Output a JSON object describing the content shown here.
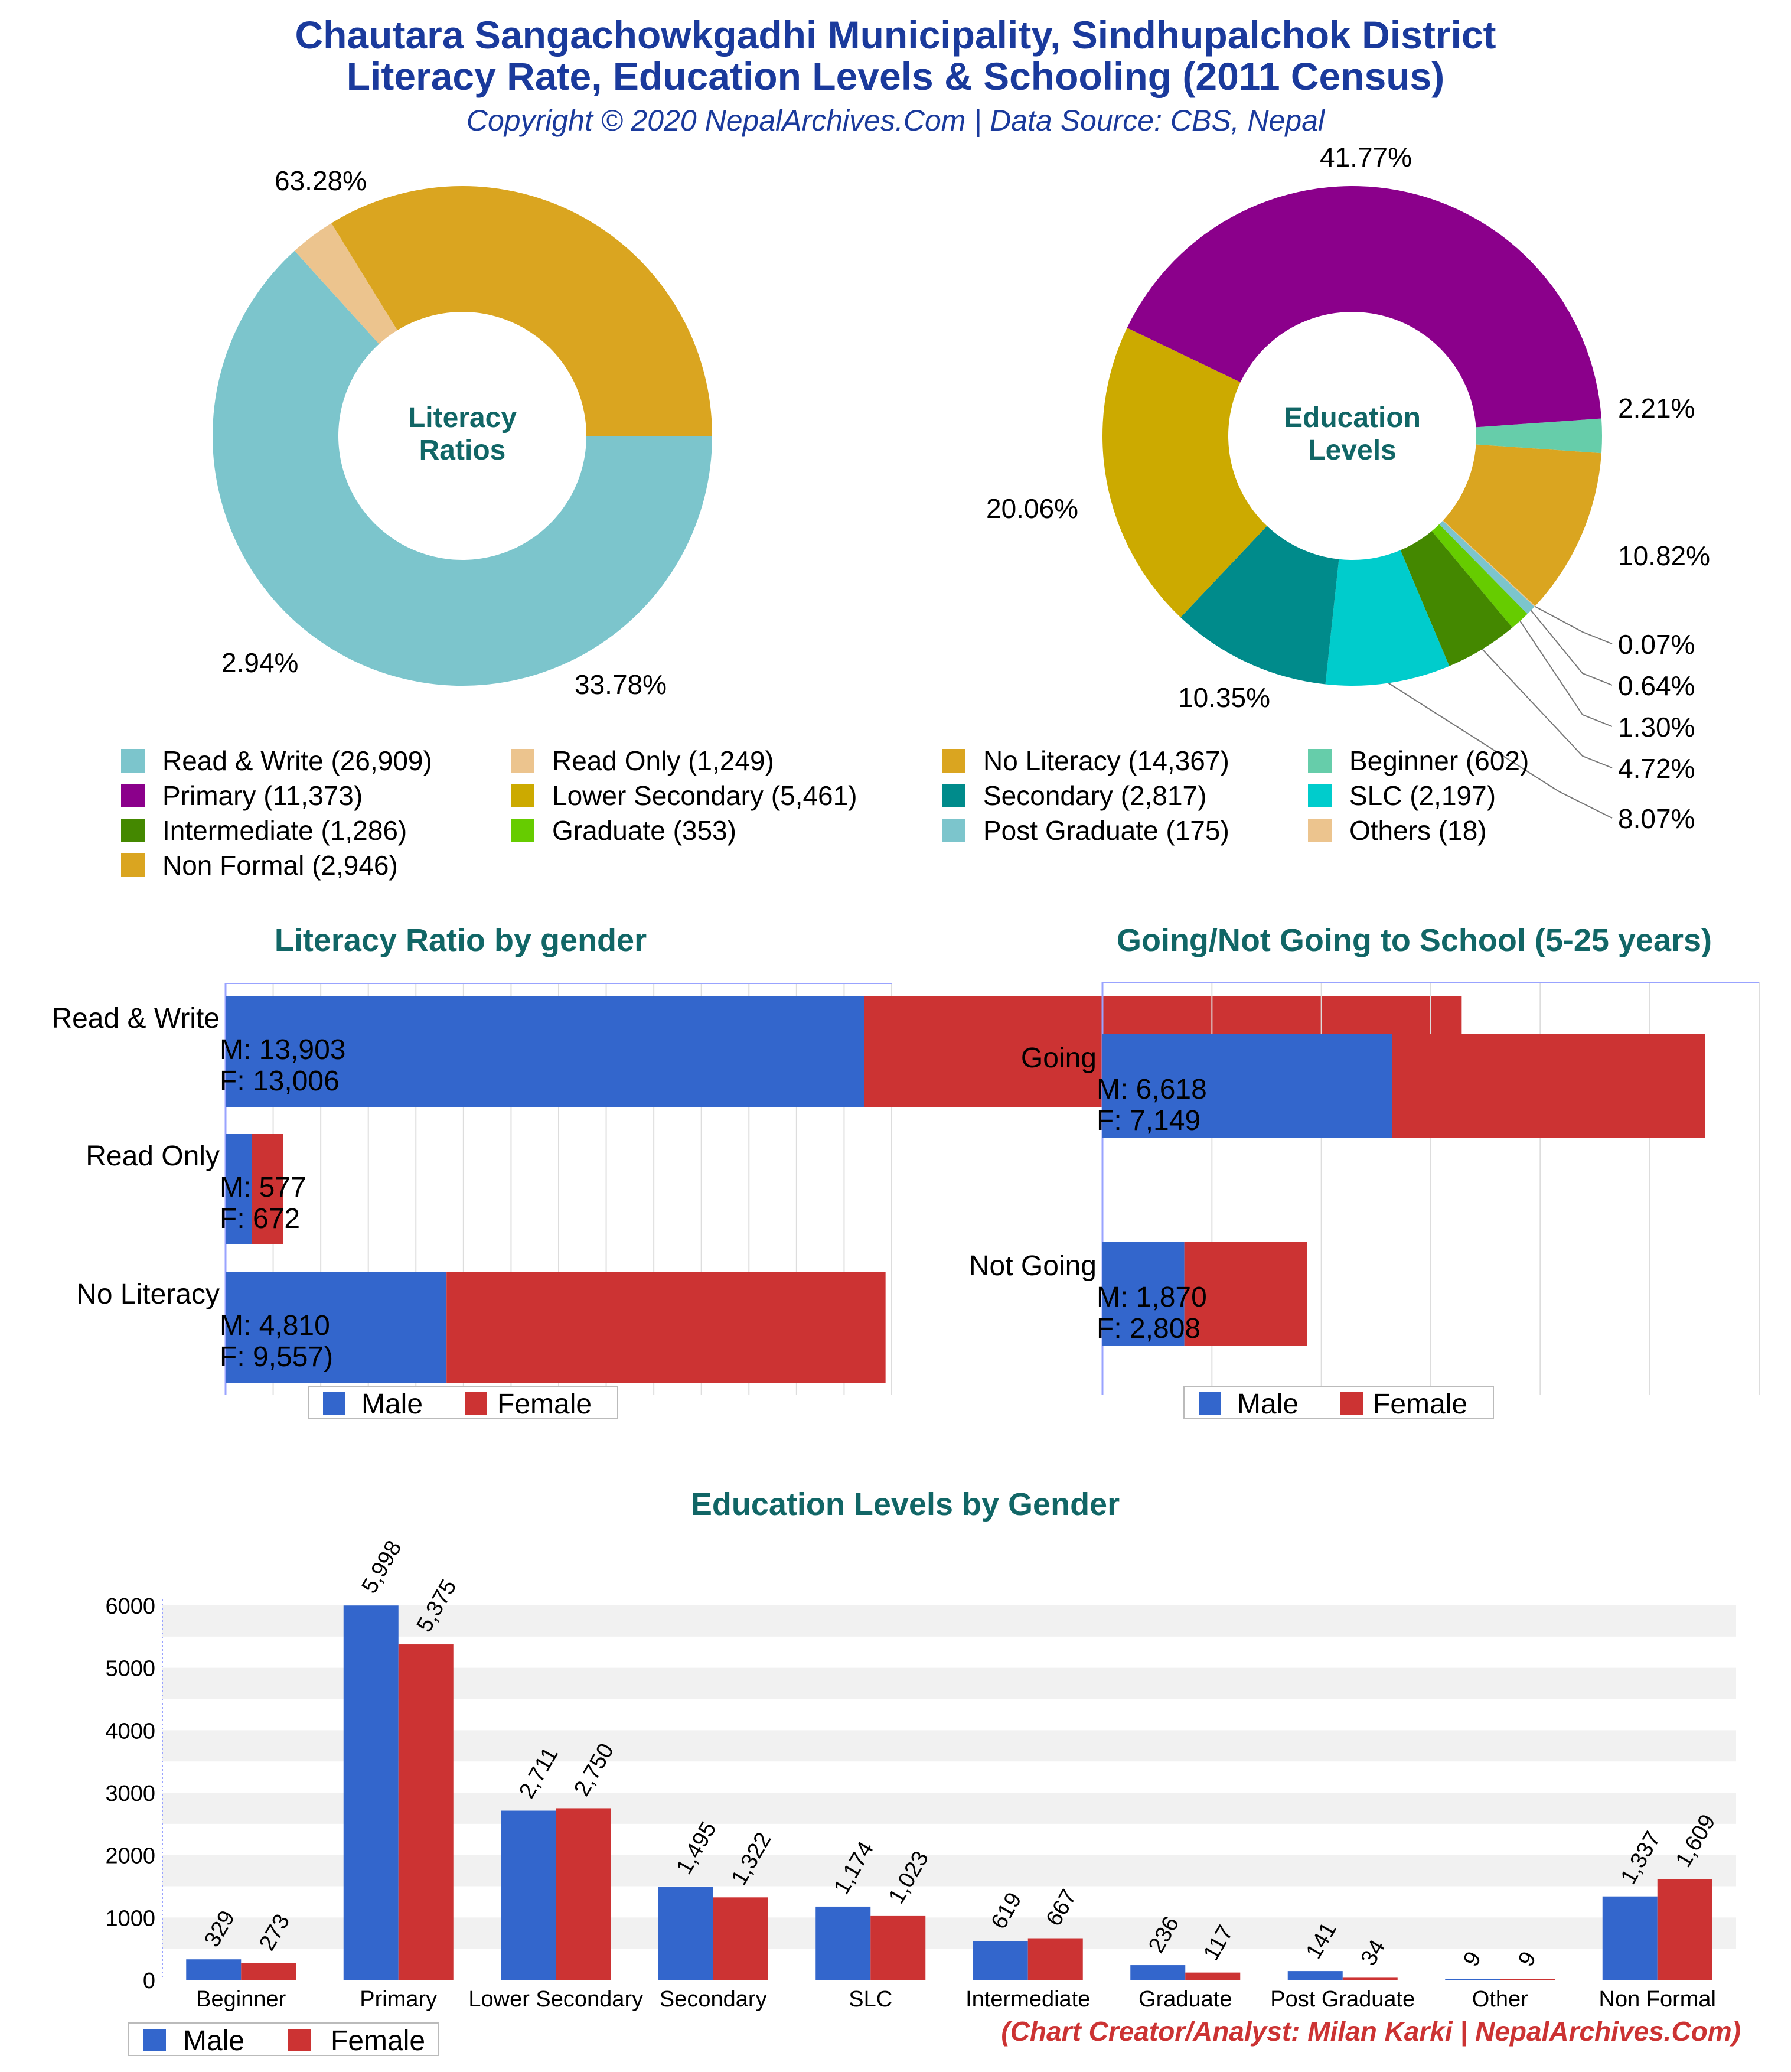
{
  "header": {
    "title_line1": "Chautara Sangachowkgadhi Municipality, Sindhupalchok District",
    "title_line2": "Literacy Rate, Education Levels & Schooling (2011 Census)",
    "copyright": "Copyright © 2020 NepalArchives.Com | Data Source: CBS, Nepal"
  },
  "footer": "(Chart Creator/Analyst: Milan Karki | NepalArchives.Com)",
  "colors": {
    "male": "#3366cc",
    "female": "#cc3333",
    "title_teal": "#116666"
  },
  "chart_data": [
    {
      "type": "pie",
      "center_label": [
        "Literacy",
        "Ratios"
      ],
      "slices": [
        {
          "label": "Read & Write",
          "value": 26909,
          "percent": "63.28%",
          "color": "#7cc5cc"
        },
        {
          "label": "Read Only",
          "value": 1249,
          "percent": "2.94%",
          "color": "#ecc48e"
        },
        {
          "label": "No Literacy",
          "value": 14367,
          "percent": "33.78%",
          "color": "#daa520"
        }
      ]
    },
    {
      "type": "pie",
      "center_label": [
        "Education",
        "Levels"
      ],
      "slices": [
        {
          "label": "Beginner",
          "value": 602,
          "percent": "2.21%",
          "color": "#66cdaa"
        },
        {
          "label": "Non Formal",
          "value": 2946,
          "percent": "10.82%",
          "color": "#daa520"
        },
        {
          "label": "Others",
          "value": 18,
          "percent": "0.07%",
          "color": "#ecc48e"
        },
        {
          "label": "Post Graduate",
          "value": 175,
          "percent": "0.64%",
          "color": "#7cc5cc"
        },
        {
          "label": "Graduate",
          "value": 353,
          "percent": "1.30%",
          "color": "#66cc00"
        },
        {
          "label": "Intermediate",
          "value": 1286,
          "percent": "4.72%",
          "color": "#448800"
        },
        {
          "label": "SLC",
          "value": 2197,
          "percent": "8.07%",
          "color": "#00cccc"
        },
        {
          "label": "Secondary",
          "value": 2817,
          "percent": "10.35%",
          "color": "#008b8b"
        },
        {
          "label": "Lower Secondary",
          "value": 5461,
          "percent": "20.06%",
          "color": "#ccaa00"
        },
        {
          "label": "Primary",
          "value": 11373,
          "percent": "41.77%",
          "color": "#8b008b"
        }
      ]
    },
    {
      "type": "bar",
      "orientation": "horizontal",
      "stacked": true,
      "title": "Literacy Ratio by gender",
      "xmax": 14500,
      "categories": [
        {
          "lines": [
            "Read & Write",
            "M: 13,903",
            "F: 13,006"
          ]
        },
        {
          "lines": [
            "Read Only",
            "M: 577",
            "F: 672"
          ]
        },
        {
          "lines": [
            "No Literacy",
            "M: 4,810",
            "F: 9,557)"
          ]
        }
      ],
      "series": [
        {
          "name": "Male",
          "values": [
            13903,
            577,
            4810
          ]
        },
        {
          "name": "Female",
          "values": [
            13006,
            672,
            9557
          ]
        }
      ]
    },
    {
      "type": "bar",
      "orientation": "horizontal",
      "stacked": true,
      "title": "Going/Not Going to School (5-25 years)",
      "xmax": 15000,
      "categories": [
        {
          "lines": [
            "Going",
            "M: 6,618",
            "F: 7,149"
          ]
        },
        {
          "lines": [
            "Not Going",
            "M: 1,870",
            "F: 2,808"
          ]
        }
      ],
      "series": [
        {
          "name": "Male",
          "values": [
            6618,
            1870
          ]
        },
        {
          "name": "Female",
          "values": [
            7149,
            2808
          ]
        }
      ]
    },
    {
      "type": "bar",
      "title": "Education Levels by Gender",
      "ylim": [
        0,
        6000
      ],
      "yticks": [
        0,
        1000,
        2000,
        3000,
        4000,
        5000,
        6000
      ],
      "categories": [
        "Beginner",
        "Primary",
        "Lower Secondary",
        "Secondary",
        "SLC",
        "Intermediate",
        "Graduate",
        "Post Graduate",
        "Other",
        "Non Formal"
      ],
      "series": [
        {
          "name": "Male",
          "values": [
            329,
            5998,
            2711,
            1495,
            1174,
            619,
            236,
            141,
            9,
            1337
          ]
        },
        {
          "name": "Female",
          "values": [
            273,
            5375,
            2750,
            1322,
            1023,
            667,
            117,
            34,
            9,
            1609
          ]
        }
      ]
    }
  ]
}
